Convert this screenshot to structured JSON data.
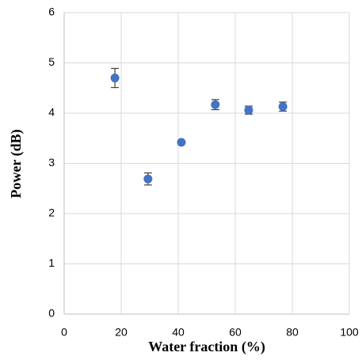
{
  "chart_data": {
    "type": "scatter",
    "x_label": "Water fraction (%)",
    "y_label": "Power (dB)",
    "series": [
      {
        "color": "#4472c4",
        "x": [
          17.8,
          29.4,
          41.1,
          53.0,
          64.7,
          76.7
        ],
        "values": [
          4.7,
          2.69,
          3.42,
          4.17,
          4.06,
          4.13
        ],
        "errors": [
          0.19,
          0.12,
          0.03,
          0.1,
          0.08,
          0.09
        ]
      }
    ],
    "xlim": [
      0,
      100
    ],
    "xticks": [
      0,
      20,
      40,
      60,
      80,
      100
    ],
    "ylim": [
      0,
      6
    ],
    "yticks": [
      0,
      1,
      2,
      3,
      4,
      5,
      6
    ],
    "grid": true
  }
}
